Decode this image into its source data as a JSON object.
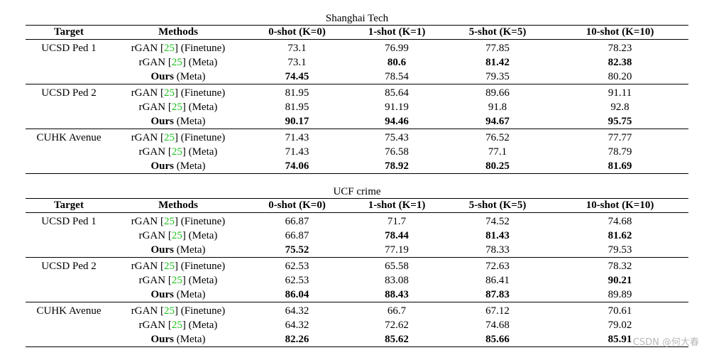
{
  "tables": [
    {
      "title": "Shanghai Tech",
      "headers": [
        "Target",
        "Methods",
        "0-shot (K=0)",
        "1-shot (K=1)",
        "5-shot (K=5)",
        "10-shot (K=10)"
      ],
      "groups": [
        {
          "target": "UCSD Ped 1",
          "rows": [
            {
              "name": "rGAN",
              "cite": "25",
              "suffix": "(Finetune)",
              "values": [
                "73.1",
                "76.99",
                "77.85",
                "78.23"
              ]
            },
            {
              "name": "rGAN",
              "cite": "25",
              "suffix": "(Meta)",
              "values": [
                "73.1",
                "80.6",
                "81.42",
                "82.38"
              ]
            },
            {
              "name": "Ours",
              "suffix": "(Meta)",
              "values": [
                "74.45",
                "78.54",
                "79.35",
                "80.20"
              ]
            }
          ]
        },
        {
          "target": "UCSD Ped 2",
          "rows": [
            {
              "name": "rGAN",
              "cite": "25",
              "suffix": "(Finetune)",
              "values": [
                "81.95",
                "85.64",
                "89.66",
                "91.11"
              ]
            },
            {
              "name": "rGAN",
              "cite": "25",
              "suffix": "(Meta)",
              "values": [
                "81.95",
                "91.19",
                "91.8",
                "92.8"
              ]
            },
            {
              "name": "Ours",
              "suffix": "(Meta)",
              "values": [
                "90.17",
                "94.46",
                "94.67",
                "95.75"
              ]
            }
          ]
        },
        {
          "target": "CUHK Avenue",
          "rows": [
            {
              "name": "rGAN",
              "cite": "25",
              "suffix": "(Finetune)",
              "values": [
                "71.43",
                "75.43",
                "76.52",
                "77.77"
              ]
            },
            {
              "name": "rGAN",
              "cite": "25",
              "suffix": "(Meta)",
              "values": [
                "71.43",
                "76.58",
                "77.1",
                "78.79"
              ]
            },
            {
              "name": "Ours",
              "suffix": "(Meta)",
              "values": [
                "74.06",
                "78.92",
                "80.25",
                "81.69"
              ]
            }
          ]
        }
      ]
    },
    {
      "title": "UCF crime",
      "headers": [
        "Target",
        "Methods",
        "0-shot (K=0)",
        "1-shot (K=1)",
        "5-shot (K=5)",
        "10-shot (K=10)"
      ],
      "groups": [
        {
          "target": "UCSD Ped 1",
          "rows": [
            {
              "name": "rGAN",
              "cite": "25",
              "suffix": "(Finetune)",
              "values": [
                "66.87",
                "71.7",
                "74.52",
                "74.68"
              ]
            },
            {
              "name": "rGAN",
              "cite": "25",
              "suffix": "(Meta)",
              "values": [
                "66.87",
                "78.44",
                "81.43",
                "81.62"
              ]
            },
            {
              "name": "Ours",
              "suffix": "(Meta)",
              "values": [
                "75.52",
                "77.19",
                "78.33",
                "79.53"
              ]
            }
          ]
        },
        {
          "target": "UCSD Ped 2",
          "rows": [
            {
              "name": "rGAN",
              "cite": "25",
              "suffix": "(Finetune)",
              "values": [
                "62.53",
                "65.58",
                "72.63",
                "78.32"
              ]
            },
            {
              "name": "rGAN",
              "cite": "25",
              "suffix": "(Meta)",
              "values": [
                "62.53",
                "83.08",
                "86.41",
                "90.21"
              ]
            },
            {
              "name": "Ours",
              "suffix": "(Meta)",
              "values": [
                "86.04",
                "88.43",
                "87.83",
                "89.89"
              ]
            }
          ]
        },
        {
          "target": "CUHK Avenue",
          "rows": [
            {
              "name": "rGAN",
              "cite": "25",
              "suffix": "(Finetune)",
              "values": [
                "64.32",
                "66.7",
                "67.12",
                "70.61"
              ]
            },
            {
              "name": "rGAN",
              "cite": "25",
              "suffix": "(Meta)",
              "values": [
                "64.32",
                "72.62",
                "74.68",
                "79.02"
              ]
            },
            {
              "name": "Ours",
              "suffix": "(Meta)",
              "values": [
                "82.26",
                "85.62",
                "85.66",
                "85.91"
              ]
            }
          ]
        }
      ]
    }
  ],
  "bold_cells": [
    [
      [
        false,
        false,
        false,
        false
      ],
      [
        false,
        true,
        true,
        true
      ],
      [
        true,
        false,
        false,
        false
      ]
    ],
    [
      [
        false,
        false,
        false,
        false
      ],
      [
        false,
        false,
        false,
        false
      ],
      [
        true,
        true,
        true,
        true
      ]
    ],
    [
      [
        false,
        false,
        false,
        false
      ],
      [
        false,
        false,
        false,
        false
      ],
      [
        true,
        true,
        true,
        true
      ]
    ],
    [
      [
        false,
        false,
        false,
        false
      ],
      [
        false,
        true,
        true,
        true
      ],
      [
        true,
        false,
        false,
        false
      ]
    ],
    [
      [
        false,
        false,
        false,
        false
      ],
      [
        false,
        false,
        false,
        true
      ],
      [
        true,
        true,
        true,
        false
      ]
    ],
    [
      [
        false,
        false,
        false,
        false
      ],
      [
        false,
        false,
        false,
        false
      ],
      [
        true,
        true,
        true,
        true
      ]
    ]
  ],
  "colors": {
    "cite": "#20c020",
    "watermark": "#b8b8b8"
  },
  "watermark": "CSDN @何大春"
}
